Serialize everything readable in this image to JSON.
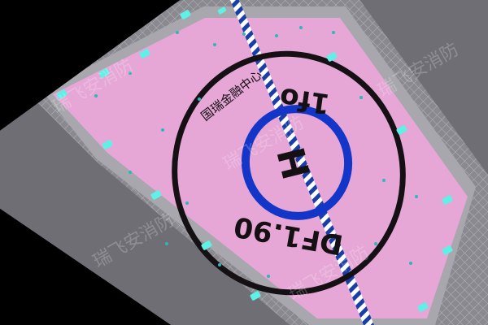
{
  "scene": {
    "background": "#000000",
    "edge_color": "#9a9aa0",
    "net_color": "#7f7f86",
    "deck_color": "#e6a6d6",
    "circle_color": "#141014",
    "h_circle_color": "#1436c8",
    "stripe_color_a": "#1a3ea8",
    "stripe_color_b": "#ffffff",
    "light_color": "#5ff0e6"
  },
  "helipad": {
    "center_name": "国瑞金融中心",
    "letter": "H",
    "top_marking": "1fo",
    "bottom_marking": "DF1.90"
  },
  "watermark": {
    "text": "瑞飞安消防",
    "brand": "REFIRE"
  }
}
